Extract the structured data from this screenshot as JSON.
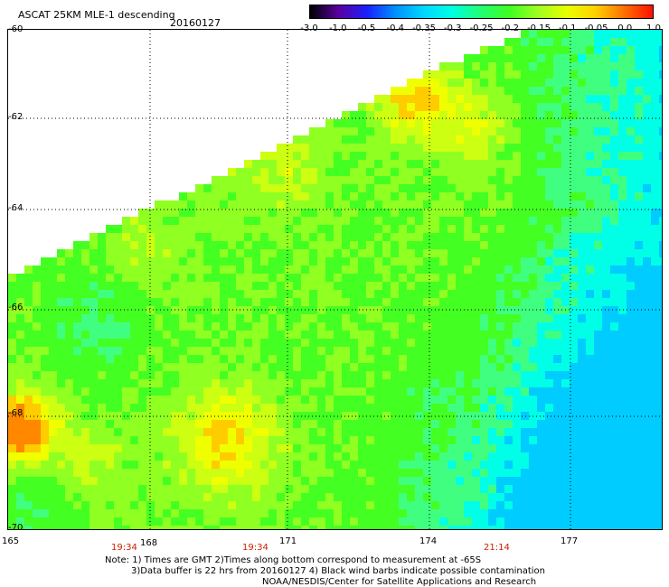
{
  "header": {
    "title": "ASCAT 25KM MLE-1 descending",
    "date": "20160127"
  },
  "colorbar": {
    "labels": [
      "-3.0",
      "-1.0",
      "-0.5",
      "-0.4",
      "-0.35",
      "-0.3",
      "-0.25",
      "-0.2",
      "-0.15",
      "-0.1",
      "-0.05",
      "0.0",
      "1.0"
    ],
    "colors": [
      "#000000",
      "#5a00a0",
      "#1a20ff",
      "#0090ff",
      "#00d8ff",
      "#00ffe0",
      "#20ff70",
      "#40ff20",
      "#a0ff20",
      "#e8ff00",
      "#ffd000",
      "#ff7000",
      "#ff1000"
    ]
  },
  "map": {
    "lon_labels": [
      "165",
      "168",
      "171",
      "174",
      "177"
    ],
    "lat_labels": [
      "-60",
      "-62",
      "-64",
      "-66",
      "-68",
      "-70"
    ],
    "time_labels": [
      "19:34",
      "19:34",
      "21:14"
    ]
  },
  "notes": {
    "line1": "Note: 1) Times are GMT 2)Times along bottom correspond to measurement at -65S",
    "line2": "3)Data buffer is 22 hrs from 20160127 4) Black wind barbs indicate possible contamination",
    "line3": "NOAA/NESDIS/Center for Satellite Applications and Research"
  }
}
